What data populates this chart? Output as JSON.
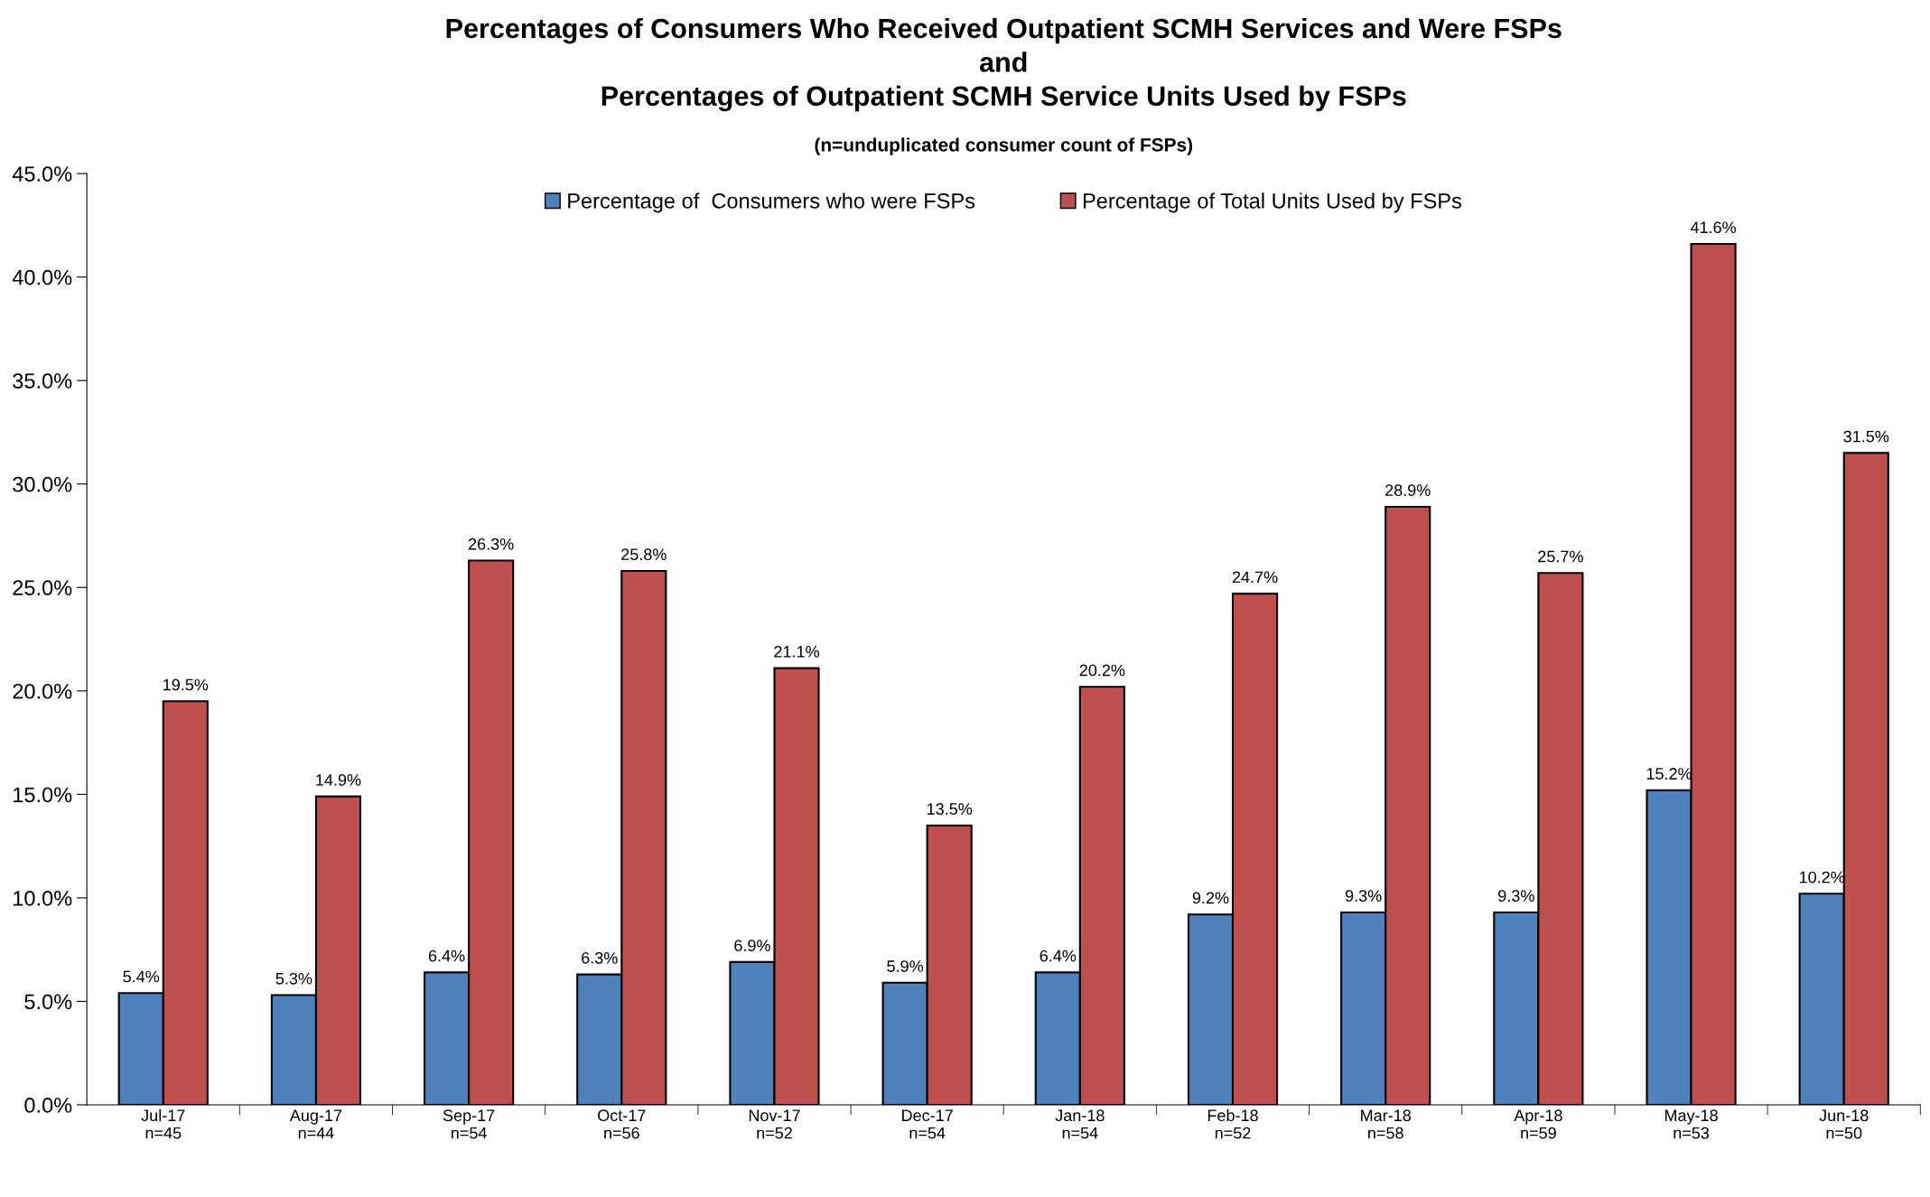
{
  "chart_data": {
    "type": "bar",
    "title": "Percentages of Consumers Who Received Outpatient SCMH Services and Were FSPs\nand\nPercentages of Outpatient SCMH Service Units Used by FSPs",
    "subtitle": "(n=unduplicated consumer count of FSPs)",
    "categories": [
      "Jul-17\nn=45",
      "Aug-17\nn=44",
      "Sep-17\nn=54",
      "Oct-17\nn=56",
      "Nov-17\nn=52",
      "Dec-17\nn=54",
      "Jan-18\nn=54",
      "Feb-18\nn=52",
      "Mar-18\nn=58",
      "Apr-18\nn=59",
      "May-18\nn=53",
      "Jun-18\nn=50"
    ],
    "series": [
      {
        "name": "Percentage of  Consumers who were FSPs",
        "color": "#4f81bd",
        "values": [
          5.4,
          5.3,
          6.4,
          6.3,
          6.9,
          5.9,
          6.4,
          9.2,
          9.3,
          9.3,
          15.2,
          10.2
        ],
        "value_labels": [
          "5.4%",
          "5.3%",
          "6.4%",
          "6.3%",
          "6.9%",
          "5.9%",
          "6.4%",
          "9.2%",
          "9.3%",
          "9.3%",
          "15.2%",
          "10.2%"
        ]
      },
      {
        "name": "Percentage of Total Units Used by FSPs",
        "color": "#c0504d",
        "values": [
          19.5,
          14.9,
          26.3,
          25.8,
          21.1,
          13.5,
          20.2,
          24.7,
          28.9,
          25.7,
          41.6,
          31.5
        ],
        "value_labels": [
          "19.5%",
          "14.9%",
          "26.3%",
          "25.8%",
          "21.1%",
          "13.5%",
          "20.2%",
          "24.7%",
          "28.9%",
          "25.7%",
          "41.6%",
          "31.5%"
        ]
      }
    ],
    "ylim": [
      0,
      45
    ],
    "yticks": [
      {
        "value": 0,
        "label": "0.0%"
      },
      {
        "value": 5,
        "label": "5.0%"
      },
      {
        "value": 10,
        "label": "10.0%"
      },
      {
        "value": 15,
        "label": "15.0%"
      },
      {
        "value": 20,
        "label": "20.0%"
      },
      {
        "value": 25,
        "label": "25.0%"
      },
      {
        "value": 30,
        "label": "30.0%"
      },
      {
        "value": 35,
        "label": "35.0%"
      },
      {
        "value": 40,
        "label": "40.0%"
      },
      {
        "value": 45,
        "label": "45.0%"
      }
    ],
    "grid": false,
    "legend": "top"
  }
}
